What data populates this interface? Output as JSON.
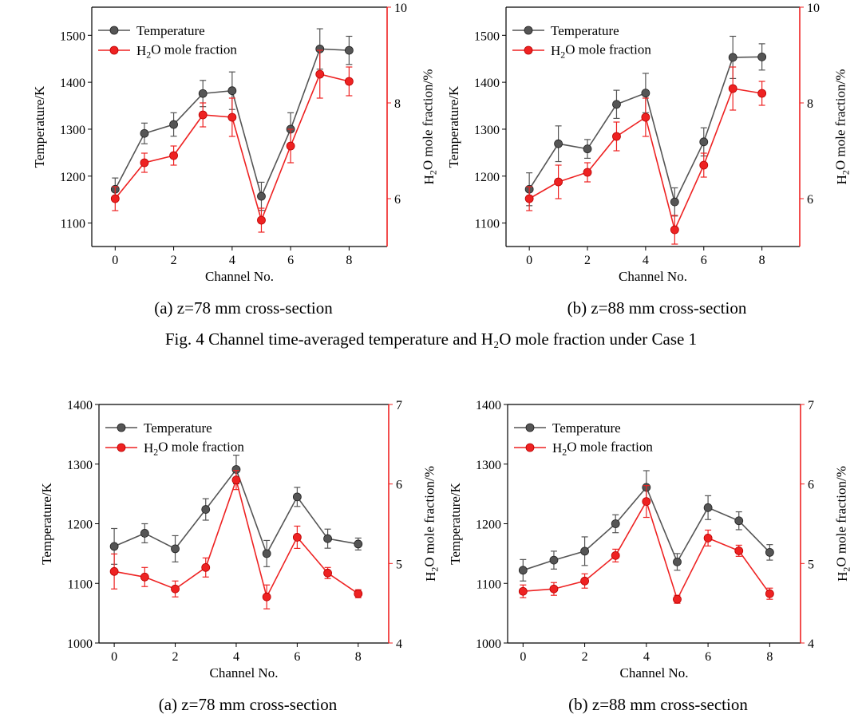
{
  "figures": [
    {
      "caption": "Fig. 4 Channel time-averaged temperature and H₂O mole fraction under Case 1"
    }
  ],
  "colors": {
    "temperature": "#555555",
    "h2o": "#ee2222",
    "axis": "#000000",
    "right_axis": "#ee2222"
  },
  "chart_data": [
    {
      "type": "line",
      "panel_caption": "(a) z=78 mm cross-section",
      "xlabel": "Channel No.",
      "ylabel": "Temperature/K",
      "y2label": "H2O mole fraction/%",
      "xlim": [
        -0.8,
        9.3
      ],
      "xticks": [
        0,
        2,
        4,
        6,
        8
      ],
      "ylim": [
        1050,
        1560
      ],
      "yticks": [
        1100,
        1200,
        1300,
        1400,
        1500
      ],
      "y2lim": [
        5.0,
        10.0
      ],
      "y2ticks": [
        6,
        8,
        10
      ],
      "legend_position": "top-left",
      "x": [
        0,
        1,
        2,
        3,
        4,
        5,
        6,
        7,
        8
      ],
      "series": [
        {
          "name": "Temperature",
          "axis": "left",
          "values": [
            1172,
            1291,
            1310,
            1376,
            1382,
            1157,
            1300,
            1471,
            1468
          ],
          "errors": [
            24,
            22,
            25,
            28,
            40,
            30,
            35,
            43,
            30
          ]
        },
        {
          "name": "H2O mole fraction",
          "axis": "right",
          "values": [
            6.0,
            6.75,
            6.9,
            7.75,
            7.7,
            5.55,
            7.1,
            8.6,
            8.45
          ],
          "errors": [
            0.25,
            0.2,
            0.2,
            0.25,
            0.4,
            0.25,
            0.35,
            0.5,
            0.3
          ]
        }
      ]
    },
    {
      "type": "line",
      "panel_caption": "(b) z=88 mm cross-section",
      "xlabel": "Channel No.",
      "ylabel": "Temperature/K",
      "y2label": "H2O mole fraction/%",
      "xlim": [
        -0.8,
        9.3
      ],
      "xticks": [
        0,
        2,
        4,
        6,
        8
      ],
      "ylim": [
        1050,
        1560
      ],
      "yticks": [
        1100,
        1200,
        1300,
        1400,
        1500
      ],
      "y2lim": [
        5.0,
        10.0
      ],
      "y2ticks": [
        6,
        8,
        10
      ],
      "legend_position": "top-left",
      "x": [
        0,
        1,
        2,
        3,
        4,
        5,
        6,
        7,
        8
      ],
      "series": [
        {
          "name": "Temperature",
          "axis": "left",
          "values": [
            1172,
            1269,
            1258,
            1353,
            1377,
            1145,
            1273,
            1453,
            1454
          ],
          "errors": [
            35,
            38,
            20,
            30,
            42,
            30,
            30,
            45,
            28
          ]
        },
        {
          "name": "H2O mole fraction",
          "axis": "right",
          "values": [
            6.0,
            6.35,
            6.55,
            7.3,
            7.7,
            5.35,
            6.7,
            8.3,
            8.2
          ],
          "errors": [
            0.25,
            0.35,
            0.2,
            0.3,
            0.4,
            0.3,
            0.25,
            0.45,
            0.25
          ]
        }
      ]
    },
    {
      "type": "line",
      "panel_caption": "(a) z=78 mm cross-section",
      "xlabel": "Channel No.",
      "ylabel": "Temperature/K",
      "y2label": "H2O mole fraction/%",
      "xlim": [
        -0.5,
        9.0
      ],
      "xticks": [
        0,
        2,
        4,
        6,
        8
      ],
      "ylim": [
        1000,
        1400
      ],
      "yticks": [
        1000,
        1100,
        1200,
        1300,
        1400
      ],
      "y2lim": [
        4.0,
        7.0
      ],
      "y2ticks": [
        4,
        5,
        6,
        7
      ],
      "legend_position": "top-left",
      "x": [
        0,
        1,
        2,
        3,
        4,
        5,
        6,
        7,
        8
      ],
      "series": [
        {
          "name": "Temperature",
          "axis": "left",
          "values": [
            1162,
            1184,
            1158,
            1224,
            1291,
            1150,
            1245,
            1175,
            1166
          ],
          "errors": [
            30,
            16,
            22,
            18,
            24,
            22,
            16,
            16,
            10
          ]
        },
        {
          "name": "H2O mole fraction",
          "axis": "right",
          "values": [
            4.9,
            4.83,
            4.68,
            4.95,
            6.05,
            4.58,
            5.33,
            4.88,
            4.62
          ],
          "errors": [
            0.22,
            0.12,
            0.1,
            0.12,
            0.12,
            0.15,
            0.14,
            0.07,
            0.05
          ]
        }
      ]
    },
    {
      "type": "line",
      "panel_caption": "(b) z=88 mm cross-section",
      "xlabel": "Channel No.",
      "ylabel": "Temperature/K",
      "y2label": "H2O mole fraction/%",
      "xlim": [
        -0.5,
        9.0
      ],
      "xticks": [
        0,
        2,
        4,
        6,
        8
      ],
      "ylim": [
        1000,
        1400
      ],
      "yticks": [
        1000,
        1100,
        1200,
        1300,
        1400
      ],
      "y2lim": [
        4.0,
        7.0
      ],
      "y2ticks": [
        4,
        5,
        6,
        7
      ],
      "legend_position": "top-left",
      "x": [
        0,
        1,
        2,
        3,
        4,
        5,
        6,
        7,
        8
      ],
      "series": [
        {
          "name": "Temperature",
          "axis": "left",
          "values": [
            1122,
            1139,
            1154,
            1200,
            1261,
            1136,
            1227,
            1205,
            1152
          ],
          "errors": [
            18,
            15,
            24,
            15,
            28,
            14,
            20,
            15,
            13
          ]
        },
        {
          "name": "H2O mole fraction",
          "axis": "right",
          "values": [
            4.65,
            4.68,
            4.78,
            5.1,
            5.78,
            4.55,
            5.32,
            5.16,
            4.62
          ],
          "errors": [
            0.08,
            0.08,
            0.09,
            0.08,
            0.2,
            0.05,
            0.1,
            0.07,
            0.07
          ]
        }
      ]
    }
  ]
}
